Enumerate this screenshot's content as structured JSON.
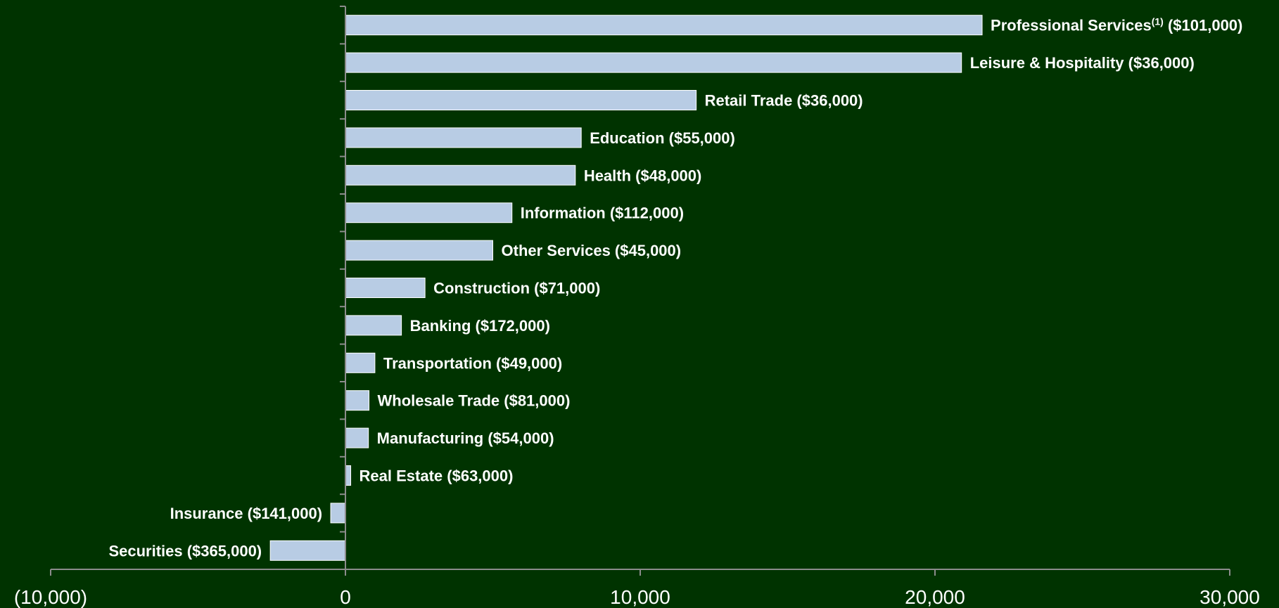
{
  "colors": {
    "background": "#003300",
    "bar_fill": "#b8cce4",
    "bar_stroke": "#ffffff",
    "axis": "#8c8c8c",
    "text": "#ffffff"
  },
  "chart_data": {
    "type": "bar",
    "orientation": "horizontal",
    "title": "",
    "xlabel": "",
    "ylabel": "",
    "xlim": [
      -10000,
      30000
    ],
    "x_ticks": [
      -10000,
      0,
      10000,
      20000,
      30000
    ],
    "x_tick_labels": [
      "(10,000)",
      "0",
      "10,000",
      "20,000",
      "30,000"
    ],
    "grid": false,
    "legend": "none",
    "categories": [
      {
        "name": "Professional Services",
        "superscript": "(1)",
        "wage": "($101,000)",
        "value": 21600
      },
      {
        "name": "Leisure & Hospitality",
        "superscript": "",
        "wage": "($36,000)",
        "value": 20900
      },
      {
        "name": "Retail Trade",
        "superscript": "",
        "wage": "($36,000)",
        "value": 11900
      },
      {
        "name": "Education",
        "superscript": "",
        "wage": "($55,000)",
        "value": 8000
      },
      {
        "name": "Health",
        "superscript": "",
        "wage": "($48,000)",
        "value": 7800
      },
      {
        "name": "Information",
        "superscript": "",
        "wage": "($112,000)",
        "value": 5650
      },
      {
        "name": "Other Services",
        "superscript": "",
        "wage": "($45,000)",
        "value": 5000
      },
      {
        "name": "Construction",
        "superscript": "",
        "wage": "($71,000)",
        "value": 2700
      },
      {
        "name": "Banking",
        "superscript": "",
        "wage": "($172,000)",
        "value": 1900
      },
      {
        "name": "Transportation",
        "superscript": "",
        "wage": "($49,000)",
        "value": 1000
      },
      {
        "name": "Wholesale Trade",
        "superscript": "",
        "wage": "($81,000)",
        "value": 800
      },
      {
        "name": "Manufacturing",
        "superscript": "",
        "wage": "($54,000)",
        "value": 780
      },
      {
        "name": "Real Estate",
        "superscript": "",
        "wage": "($63,000)",
        "value": 180
      },
      {
        "name": "Insurance",
        "superscript": "",
        "wage": "($141,000)",
        "value": -500
      },
      {
        "name": "Securities",
        "superscript": "",
        "wage": "($365,000)",
        "value": -2550
      }
    ]
  }
}
